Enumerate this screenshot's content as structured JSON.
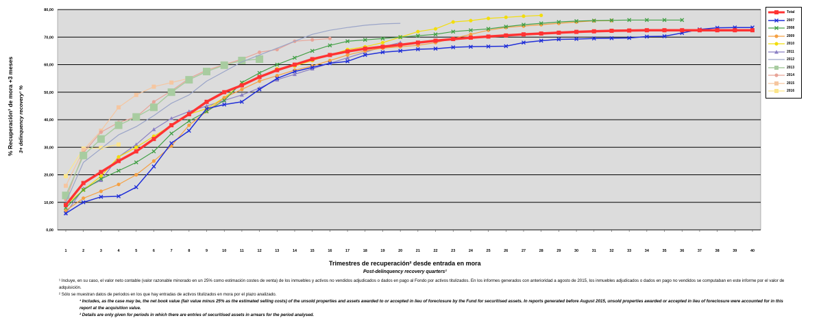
{
  "chart_data": {
    "type": "line",
    "ylabel": "% Recuperación¹ de mora +3 meses",
    "ylabel_en": "3+ delinquency recovery¹ %",
    "xlabel": "Trimestres de recuperación² desde entrada en mora",
    "xlabel_en": "Post-delinquency recovery quarters²",
    "ylim": [
      0,
      80
    ],
    "yticks": [
      "0,00",
      "10,00",
      "20,00",
      "30,00",
      "40,00",
      "50,00",
      "60,00",
      "70,00",
      "80,00"
    ],
    "x": [
      "1",
      "2",
      "3",
      "4",
      "5",
      "6",
      "7",
      "8",
      "9",
      "10",
      "11",
      "12",
      "13",
      "14",
      "15",
      "16",
      "17",
      "18",
      "19",
      "20",
      "21",
      "22",
      "23",
      "24",
      "25",
      "26",
      "27",
      "28",
      "29",
      "30",
      "31",
      "32",
      "33",
      "34",
      "35",
      "36",
      "37",
      "38",
      "39",
      "40"
    ],
    "grid": true,
    "legend_position": "right",
    "series": [
      {
        "name": "Total",
        "color": "#ff3333",
        "marker": "square",
        "width": 3.5,
        "values": [
          9,
          17,
          21,
          25,
          28.5,
          33,
          38,
          42,
          46.5,
          50,
          52.5,
          55.5,
          58,
          60,
          62,
          63.5,
          64.8,
          65.8,
          66.5,
          67.2,
          68,
          68.7,
          69.3,
          69.8,
          70.2,
          70.6,
          71,
          71.3,
          71.6,
          71.9,
          72.1,
          72.3,
          72.4,
          72.5,
          72.5,
          72.5,
          72.5,
          72.5,
          72.5,
          72.5
        ]
      },
      {
        "name": "2007",
        "color": "#1f2ed8",
        "marker": "x",
        "width": 1.5,
        "values": [
          6,
          10,
          12,
          12.2,
          15.5,
          23,
          31.5,
          36,
          44,
          45.5,
          46.5,
          51,
          55,
          57.5,
          59,
          60.5,
          61.2,
          63.5,
          64.5,
          65,
          65.6,
          65.8,
          66.3,
          66.5,
          66.6,
          66.7,
          68,
          68.7,
          69.2,
          69.3,
          69.5,
          69.6,
          69.7,
          70.2,
          70.3,
          71.5,
          72.8,
          73.4,
          73.5,
          73.5
        ]
      },
      {
        "name": "2008",
        "color": "#43a047",
        "marker": "x",
        "width": 1.2,
        "values": [
          8,
          14.5,
          18.5,
          21.5,
          24.5,
          28.5,
          35,
          39.5,
          43,
          47,
          53.5,
          57,
          60,
          62.5,
          65,
          67,
          68.5,
          69,
          69.5,
          70,
          70.5,
          71,
          72,
          72.5,
          73,
          73.8,
          74.5,
          75,
          75.5,
          75.8,
          76,
          76.1,
          76.2,
          76.2,
          76.2,
          76.2,
          null,
          null,
          null,
          null
        ]
      },
      {
        "name": "2009",
        "color": "#f5a042",
        "marker": "circle",
        "width": 1.2,
        "values": [
          7,
          11.5,
          14,
          16.5,
          20,
          25,
          30.5,
          38,
          43,
          48,
          51,
          54,
          56,
          58,
          59.5,
          61.5,
          63.5,
          65,
          66,
          66.5,
          67,
          68,
          69.5,
          71,
          72.5,
          73.5,
          74,
          74.5,
          75,
          75.5,
          75.9,
          76,
          null,
          null,
          null,
          null,
          null,
          null,
          null,
          null
        ]
      },
      {
        "name": "2010",
        "color": "#f2dd0c",
        "marker": "circle",
        "width": 1.2,
        "values": [
          9,
          14.5,
          19.5,
          26.5,
          30,
          34,
          38,
          42,
          44,
          48,
          53,
          55.5,
          58.5,
          59.5,
          61.5,
          63.5,
          65.5,
          66.5,
          68,
          70,
          72,
          73,
          75.5,
          76,
          76.8,
          77.2,
          77.6,
          77.9,
          null,
          null,
          null,
          null,
          null,
          null,
          null,
          null,
          null,
          null,
          null,
          null
        ]
      },
      {
        "name": "2011",
        "color": "#8a7fc4",
        "marker": "triangle",
        "width": 1.2,
        "values": [
          6,
          15,
          18,
          26.5,
          31,
          36.5,
          40.5,
          43,
          45,
          47,
          49,
          51.5,
          54.5,
          56.5,
          58.5,
          60.5,
          62.5,
          64.5,
          66.5,
          68,
          null,
          null,
          null,
          null,
          null,
          null,
          null,
          null,
          null,
          null,
          null,
          null,
          null,
          null,
          null,
          null,
          null,
          null,
          null,
          null
        ]
      },
      {
        "name": "2012",
        "color": "#9aa4c8",
        "marker": "none",
        "width": 1.2,
        "values": [
          10,
          24.5,
          29.5,
          34.5,
          37.5,
          41.5,
          46,
          49,
          54,
          57.5,
          61,
          63.5,
          66,
          68.5,
          71,
          72.5,
          73.5,
          74.3,
          74.8,
          75,
          null,
          null,
          null,
          null,
          null,
          null,
          null,
          null,
          null,
          null,
          null,
          null,
          null,
          null,
          null,
          null,
          null,
          null,
          null,
          null
        ]
      },
      {
        "name": "2013",
        "color": "#a8cca0",
        "marker": "bigsquare",
        "width": 1.5,
        "values": [
          12.5,
          27,
          33,
          38,
          41,
          44.5,
          50,
          54.5,
          57.5,
          59.8,
          61.5,
          62,
          null,
          null,
          null,
          null,
          null,
          null,
          null,
          null,
          null,
          null,
          null,
          null,
          null,
          null,
          null,
          null,
          null,
          null,
          null,
          null,
          null,
          null,
          null,
          null,
          null,
          null,
          null,
          null
        ]
      },
      {
        "name": "2014",
        "color": "#e8a498",
        "marker": "circle",
        "width": 1.2,
        "values": [
          11,
          28,
          35.5,
          39,
          41,
          46.5,
          50.5,
          55,
          58,
          60,
          62,
          64.5,
          65.5,
          68.5,
          69,
          69.5,
          null,
          null,
          null,
          null,
          null,
          null,
          null,
          null,
          null,
          null,
          null,
          null,
          null,
          null,
          null,
          null,
          null,
          null,
          null,
          null,
          null,
          null,
          null,
          null
        ]
      },
      {
        "name": "2015",
        "color": "#f5c6a0",
        "marker": "square",
        "width": 1.2,
        "values": [
          16,
          29,
          36,
          44.5,
          49,
          52,
          53.5,
          55,
          null,
          null,
          null,
          null,
          null,
          null,
          null,
          null,
          null,
          null,
          null,
          null,
          null,
          null,
          null,
          null,
          null,
          null,
          null,
          null,
          null,
          null,
          null,
          null,
          null,
          null,
          null,
          null,
          null,
          null,
          null,
          null
        ]
      },
      {
        "name": "2016",
        "color": "#fce58a",
        "marker": "square",
        "width": 1.2,
        "values": [
          19.5,
          29.5,
          29.8,
          31,
          null,
          null,
          null,
          null,
          null,
          null,
          null,
          null,
          null,
          null,
          null,
          null,
          null,
          null,
          null,
          null,
          null,
          null,
          null,
          null,
          null,
          null,
          null,
          null,
          null,
          null,
          null,
          null,
          null,
          null,
          null,
          null,
          null,
          null,
          null,
          null
        ]
      }
    ]
  },
  "notes": {
    "n1": "¹ Incluye, en su caso, el valor neto contable (valor razonable minorado en un 25% como estimación costes de venta) de los inmuebles y activos no vendidos adjudicados o dados en pago al Fondo por activos titulizados. En los informes generados con anterioridad a agosto de 2015, los inmuebles adjudicados o dados en pago no vendidos se computaban en este informe por el valor de adquisición.",
    "n2": "² Sólo se muestran datos de periodos en los que hay entradas de activos titulizados en mora por el plazo analizado.",
    "n1_en": "¹ Includes, as the case may be, the net book value (fair value minus 25% as the estimated selling costs) of the unsold properties and assets awarded to or accepted in lieu of foreclosure by the Fund for securitised assets. In reports generated before August 2015, unsold properties awarded or accepted in lieu of foreclosure were accounted for in this report at the acquisition value.",
    "n2_en": "² Details are only given for periods in which there are entries of securitised assets in arrears for the period analysed."
  }
}
